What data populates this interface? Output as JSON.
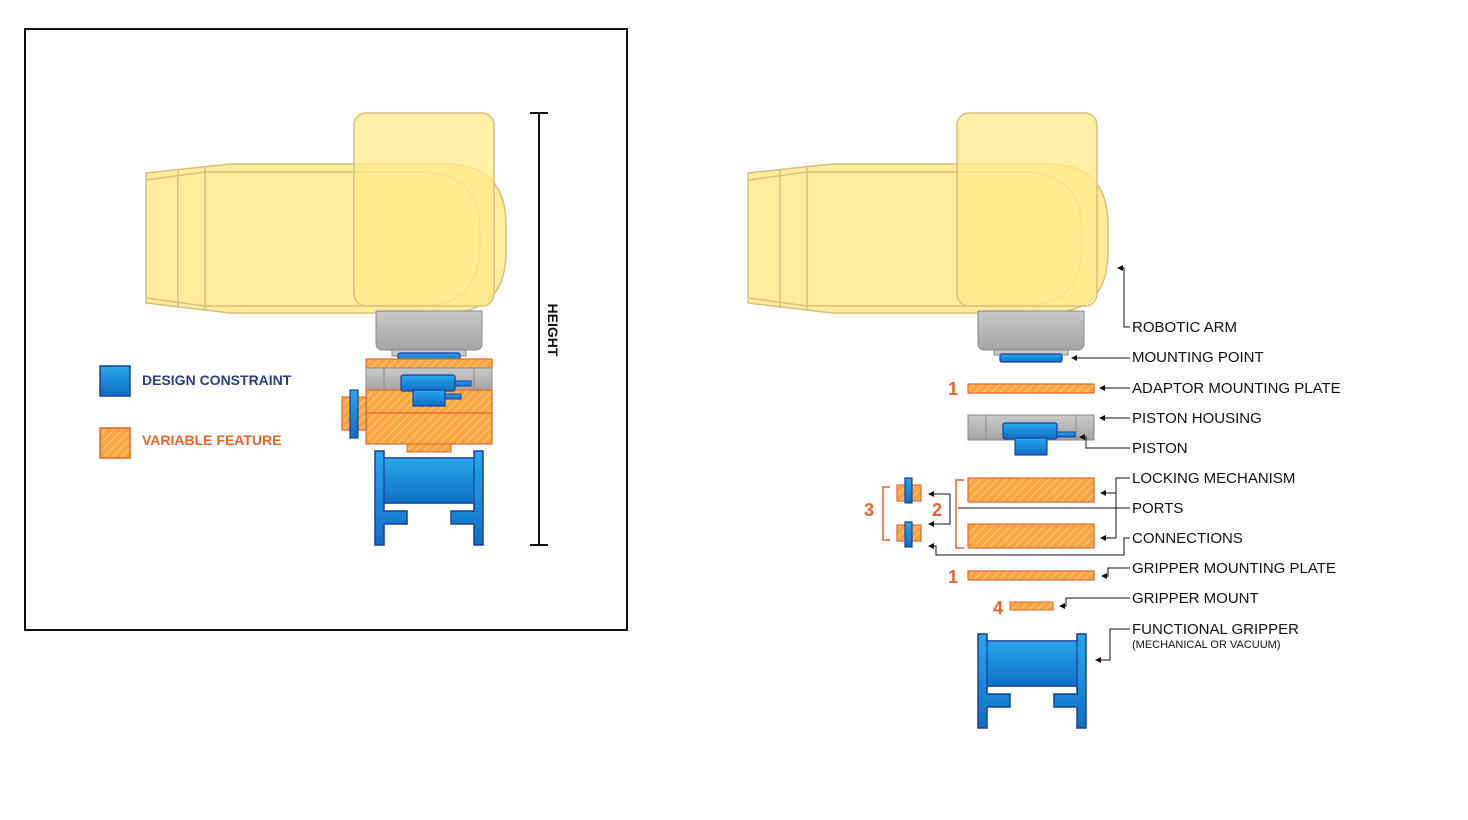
{
  "colors": {
    "arm_fill": "#fde98a",
    "arm_stroke": "#d8c27a",
    "blue": "#1a8fd8",
    "blue_stroke": "#1c3f9e",
    "orange": "#f7a541",
    "orange_stroke": "#e8642c",
    "gray": "#b9b9b9",
    "gray_stroke": "#8a8a8a",
    "legend_blue_text": "#2b3f86",
    "legend_orange_text": "#e8642c",
    "number_color": "#e8642c"
  },
  "legend": {
    "design_constraint": "DESIGN CONSTRAINT",
    "variable_feature": "VARIABLE FEATURE"
  },
  "dimension": {
    "height_label": "HEIGHT"
  },
  "callouts": {
    "robotic_arm": "ROBOTIC ARM",
    "mounting_point": "MOUNTING POINT",
    "adaptor_mounting_plate": "ADAPTOR MOUNTING PLATE",
    "piston_housing": "PISTON HOUSING",
    "piston": "PISTON",
    "locking_mechanism": "LOCKING MECHANISM",
    "ports": "PORTS",
    "connections": "CONNECTIONS",
    "gripper_mounting_plate": "GRIPPER MOUNTING PLATE",
    "gripper_mount": "GRIPPER MOUNT",
    "functional_gripper": "FUNCTIONAL GRIPPER",
    "functional_gripper_sub": "(MECHANICAL OR VACUUM)"
  },
  "numbers": {
    "adaptor_plate": "1",
    "gripper_plate": "1",
    "locking_group": "2",
    "connections_group": "3",
    "gripper_mount": "4"
  }
}
